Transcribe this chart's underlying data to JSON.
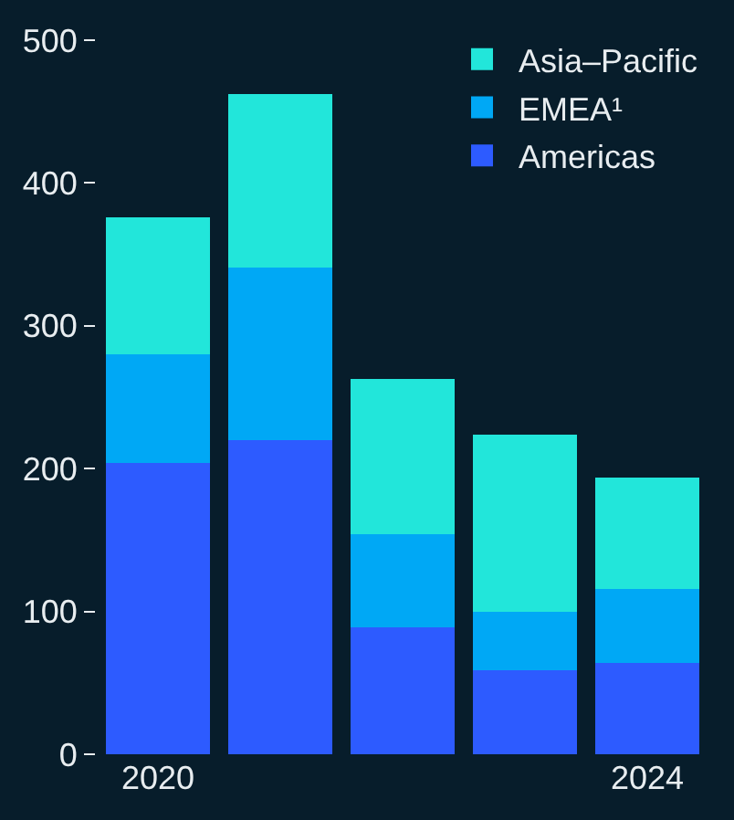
{
  "chart_data": {
    "type": "bar",
    "stacked": true,
    "categories": [
      "2020",
      null,
      null,
      null,
      "2024"
    ],
    "series": [
      {
        "name": "Americas",
        "color": "#2d5bff",
        "values": [
          204,
          220,
          89,
          59,
          64
        ]
      },
      {
        "name": "EMEA¹",
        "color": "#00a8f5",
        "values": [
          76,
          121,
          65,
          41,
          52
        ]
      },
      {
        "name": "Asia–Pacific",
        "color": "#22e6da",
        "values": [
          96,
          121,
          109,
          124,
          78
        ]
      }
    ],
    "ylim": [
      0,
      500
    ],
    "yticks": [
      0,
      100,
      200,
      300,
      400,
      500
    ],
    "grid": false,
    "legend": "top right"
  }
}
